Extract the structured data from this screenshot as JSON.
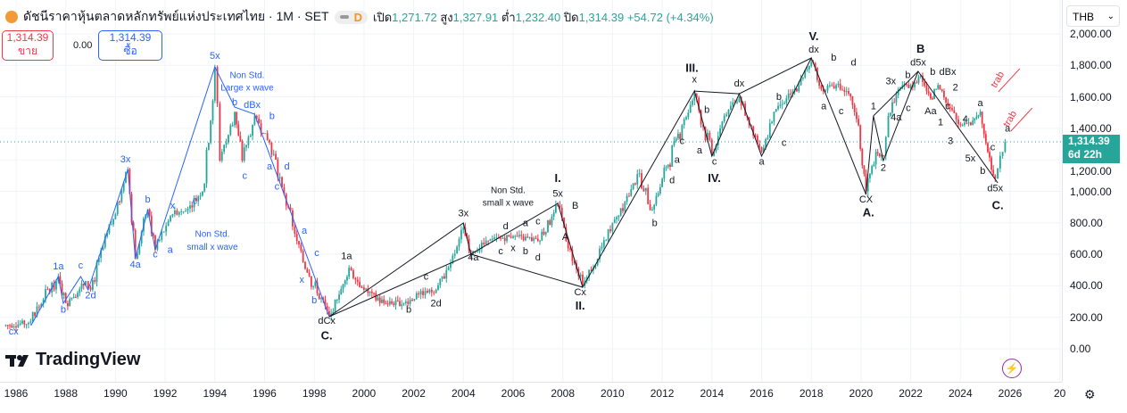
{
  "header": {
    "title": "ดัชนีราคาหุ้นตลาดหลักทรัพย์แห่งประเทศไทย · 1M · SET",
    "badge": "D",
    "open_label": "เปิด",
    "open": "1,271.72",
    "high_label": "สูง",
    "high": "1,327.91",
    "low_label": "ต่ำ",
    "low": "1,232.40",
    "close_label": "ปิด",
    "close": "1,314.39",
    "change": "+54.72 (+4.34%)"
  },
  "trade": {
    "sell_price": "1,314.39",
    "sell_label": "ขาย",
    "spread": "0.00",
    "buy_price": "1,314.39",
    "buy_label": "ซื้อ"
  },
  "axis": {
    "currency": "THB",
    "last_price": "1,314.39",
    "countdown": "6d 22h",
    "ticks": [
      "2,000.00",
      "1,800.00",
      "1,600.00",
      "1,400.00",
      "1,200.00",
      "1,000.00",
      "800.00",
      "600.00",
      "400.00",
      "200.00",
      "0.00"
    ]
  },
  "time_labels": [
    "1986",
    "1988",
    "1990",
    "1992",
    "1994",
    "1996",
    "1998",
    "2000",
    "2002",
    "2004",
    "2006",
    "2008",
    "2010",
    "2012",
    "2014",
    "2016",
    "2018",
    "2020",
    "2022",
    "2024",
    "2026",
    "20"
  ],
  "branding": "TradingView",
  "colors": {
    "up": "#26a69a",
    "down": "#f23645",
    "blue_wave": "#2962ff",
    "black_wave": "#131722",
    "annotation_red": "#f23645",
    "last_line": "#26a69a"
  },
  "chart_data": {
    "type": "candlestick",
    "ylim": [
      0,
      2000
    ],
    "xlim": [
      1985.4,
      2027.9
    ],
    "grid": true,
    "y_scale": "linear",
    "price_path": [
      [
        1985.5,
        147
      ],
      [
        1986.5,
        165
      ],
      [
        1987.7,
        460
      ],
      [
        1988,
        290
      ],
      [
        1988.8,
        430
      ],
      [
        1989,
        375
      ],
      [
        1990,
        855
      ],
      [
        1990.5,
        1140
      ],
      [
        1990.8,
        570
      ],
      [
        1991.3,
        885
      ],
      [
        1991.6,
        630
      ],
      [
        1992.3,
        855
      ],
      [
        1993,
        910
      ],
      [
        1993.5,
        1000
      ],
      [
        1994,
        1790
      ],
      [
        1994.2,
        1195
      ],
      [
        1994.8,
        1505
      ],
      [
        1995.1,
        1195
      ],
      [
        1995.6,
        1480
      ],
      [
        1996.2,
        1310
      ],
      [
        1996.7,
        1025
      ],
      [
        1997.3,
        685
      ],
      [
        1997.8,
        460
      ],
      [
        1998.6,
        205
      ],
      [
        1999,
        345
      ],
      [
        1999.4,
        515
      ],
      [
        2000,
        375
      ],
      [
        2000.8,
        290
      ],
      [
        2001.6,
        290
      ],
      [
        2002.2,
        345
      ],
      [
        2002.9,
        375
      ],
      [
        2003.4,
        515
      ],
      [
        2004,
        770
      ],
      [
        2004.3,
        600
      ],
      [
        2005,
        685
      ],
      [
        2006,
        715
      ],
      [
        2007,
        685
      ],
      [
        2007.8,
        910
      ],
      [
        2008.3,
        630
      ],
      [
        2008.8,
        400
      ],
      [
        2009.4,
        570
      ],
      [
        2010,
        800
      ],
      [
        2011,
        1110
      ],
      [
        2011.6,
        885
      ],
      [
        2012,
        1080
      ],
      [
        2012.8,
        1420
      ],
      [
        2013.3,
        1620
      ],
      [
        2014,
        1225
      ],
      [
        2014.5,
        1480
      ],
      [
        2015.1,
        1600
      ],
      [
        2015.5,
        1420
      ],
      [
        2016,
        1250
      ],
      [
        2016.5,
        1505
      ],
      [
        2017,
        1590
      ],
      [
        2017.5,
        1675
      ],
      [
        2018,
        1820
      ],
      [
        2018.4,
        1650
      ],
      [
        2019,
        1675
      ],
      [
        2019.5,
        1620
      ],
      [
        2019.9,
        1420
      ],
      [
        2020.2,
        1000
      ],
      [
        2020.6,
        1250
      ],
      [
        2020.9,
        1225
      ],
      [
        2021.1,
        1480
      ],
      [
        2021.5,
        1650
      ],
      [
        2022,
        1675
      ],
      [
        2022.4,
        1735
      ],
      [
        2022.8,
        1590
      ],
      [
        2023.1,
        1675
      ],
      [
        2023.5,
        1535
      ],
      [
        2024,
        1420
      ],
      [
        2024.5,
        1450
      ],
      [
        2024.8,
        1505
      ],
      [
        2025.1,
        1250
      ],
      [
        2025.4,
        1080
      ],
      [
        2025.6,
        1225
      ],
      [
        2025.8,
        1314.39
      ]
    ],
    "last_close": 1314.39,
    "wave_lines": [
      {
        "color": "blue",
        "points": [
          [
            1986.6,
            147
          ],
          [
            1987.7,
            459
          ],
          [
            1987.9,
            289
          ],
          [
            1988.6,
            459
          ],
          [
            1988.9,
            374
          ],
          [
            1990.5,
            1139
          ],
          [
            1990.8,
            572
          ],
          [
            1991.3,
            884
          ],
          [
            1991.6,
            629
          ],
          [
            1994,
            1790
          ],
          [
            1994.8,
            1535
          ],
          [
            1995.6,
            1490
          ],
          [
            1998.6,
            204
          ]
        ]
      },
      {
        "color": "black",
        "points": [
          [
            1998.6,
            204
          ],
          [
            2004,
            799
          ],
          [
            2004.3,
            601
          ],
          [
            2007.8,
            923
          ],
          [
            2008.8,
            391
          ],
          [
            2013.3,
            1637
          ],
          [
            2014,
            1224
          ],
          [
            2015.1,
            1620
          ],
          [
            2016,
            1224
          ],
          [
            2018,
            1847
          ],
          [
            2020.2,
            980
          ],
          [
            2020.5,
            1479
          ],
          [
            2020.9,
            1195
          ],
          [
            2022.3,
            1762
          ],
          [
            2025.5,
            1054
          ]
        ]
      },
      {
        "color": "black",
        "points": [
          [
            1998.6,
            204
          ],
          [
            2004.3,
            601
          ],
          [
            2008.8,
            391
          ]
        ]
      },
      {
        "color": "black",
        "points": [
          [
            2013.3,
            1637
          ],
          [
            2015.1,
            1620
          ],
          [
            2018,
            1847
          ]
        ]
      },
      {
        "color": "black",
        "points": [
          [
            2020.5,
            1479
          ],
          [
            2022.3,
            1762
          ]
        ]
      }
    ],
    "labels": [
      {
        "t": "cx",
        "x": 1985.9,
        "y": 90,
        "c": "blue"
      },
      {
        "t": "1a",
        "x": 1987.7,
        "y": 505,
        "c": "blue"
      },
      {
        "t": "b",
        "x": 1987.9,
        "y": 230,
        "c": "blue"
      },
      {
        "t": "c",
        "x": 1988.6,
        "y": 510,
        "c": "blue"
      },
      {
        "t": "2d",
        "x": 1989,
        "y": 320,
        "c": "blue"
      },
      {
        "t": "3x",
        "x": 1990.4,
        "y": 1185,
        "c": "blue"
      },
      {
        "t": "4a",
        "x": 1990.8,
        "y": 515,
        "c": "blue"
      },
      {
        "t": "b",
        "x": 1991.3,
        "y": 930,
        "c": "blue"
      },
      {
        "t": "c",
        "x": 1991.6,
        "y": 580,
        "c": "blue"
      },
      {
        "t": "x",
        "x": 1992.3,
        "y": 890,
        "c": "blue"
      },
      {
        "t": "a",
        "x": 1992.2,
        "y": 610,
        "c": "blue"
      },
      {
        "t": "c",
        "x": 1993.2,
        "y": 920,
        "c": "blue"
      },
      {
        "t": "Non Std.",
        "x": 1993.9,
        "y": 710,
        "c": "blue"
      },
      {
        "t": "small x wave",
        "x": 1993.9,
        "y": 630,
        "c": "blue"
      },
      {
        "t": "5x",
        "x": 1994,
        "y": 1840,
        "c": "blue"
      },
      {
        "t": "Non Std.",
        "x": 1995.3,
        "y": 1720,
        "c": "blue"
      },
      {
        "t": "Large x wave",
        "x": 1995.3,
        "y": 1640,
        "c": "blue"
      },
      {
        "t": "b",
        "x": 1994.8,
        "y": 1580,
        "c": "blue"
      },
      {
        "t": "dBx",
        "x": 1995.5,
        "y": 1530,
        "c": "blue"
      },
      {
        "t": "b",
        "x": 1996.3,
        "y": 1460,
        "c": "blue"
      },
      {
        "t": "c",
        "x": 1995.2,
        "y": 1080,
        "c": "blue"
      },
      {
        "t": "a",
        "x": 1996.2,
        "y": 1140,
        "c": "blue"
      },
      {
        "t": "d",
        "x": 1996.9,
        "y": 1140,
        "c": "blue"
      },
      {
        "t": "c",
        "x": 1996.5,
        "y": 1010,
        "c": "blue"
      },
      {
        "t": "a",
        "x": 1997.6,
        "y": 730,
        "c": "blue"
      },
      {
        "t": "c",
        "x": 1998.1,
        "y": 590,
        "c": "blue"
      },
      {
        "t": "x",
        "x": 1997.5,
        "y": 420,
        "c": "blue"
      },
      {
        "t": "b",
        "x": 1998,
        "y": 290,
        "c": "blue"
      },
      {
        "t": "dCx",
        "x": 1998.5,
        "y": 160,
        "c": "black"
      },
      {
        "t": "C.",
        "x": 1998.5,
        "y": 60,
        "c": "black",
        "b": true
      },
      {
        "t": "1a",
        "x": 1999.3,
        "y": 570,
        "c": "black"
      },
      {
        "t": "b",
        "x": 2001.8,
        "y": 230,
        "c": "black"
      },
      {
        "t": "2d",
        "x": 2002.9,
        "y": 270,
        "c": "black"
      },
      {
        "t": "c",
        "x": 2002.5,
        "y": 440,
        "c": "black"
      },
      {
        "t": "3x",
        "x": 2004,
        "y": 840,
        "c": "black"
      },
      {
        "t": "4a",
        "x": 2004.4,
        "y": 560,
        "c": "black"
      },
      {
        "t": "Non Std.",
        "x": 2005.8,
        "y": 990,
        "c": "black"
      },
      {
        "t": "small x wave",
        "x": 2005.8,
        "y": 910,
        "c": "black"
      },
      {
        "t": "c",
        "x": 2005.5,
        "y": 600,
        "c": "black"
      },
      {
        "t": "x",
        "x": 2006,
        "y": 620,
        "c": "black"
      },
      {
        "t": "b",
        "x": 2006.5,
        "y": 600,
        "c": "black"
      },
      {
        "t": "d",
        "x": 2007,
        "y": 560,
        "c": "black"
      },
      {
        "t": "d",
        "x": 2005.7,
        "y": 760,
        "c": "black"
      },
      {
        "t": "a",
        "x": 2006.5,
        "y": 780,
        "c": "black"
      },
      {
        "t": "c",
        "x": 2007,
        "y": 790,
        "c": "black"
      },
      {
        "t": "I.",
        "x": 2007.8,
        "y": 1060,
        "c": "black",
        "b": true
      },
      {
        "t": "5x",
        "x": 2007.8,
        "y": 965,
        "c": "black"
      },
      {
        "t": "B",
        "x": 2008.5,
        "y": 890,
        "c": "black"
      },
      {
        "t": "A",
        "x": 2008.1,
        "y": 690,
        "c": "black"
      },
      {
        "t": "Cx",
        "x": 2008.7,
        "y": 340,
        "c": "black"
      },
      {
        "t": "II.",
        "x": 2008.7,
        "y": 250,
        "c": "black",
        "b": true
      },
      {
        "t": "b",
        "x": 2011.7,
        "y": 780,
        "c": "black"
      },
      {
        "t": "d",
        "x": 2012.4,
        "y": 1050,
        "c": "black"
      },
      {
        "t": "a",
        "x": 2012.6,
        "y": 1180,
        "c": "black"
      },
      {
        "t": "c",
        "x": 2012.8,
        "y": 1300,
        "c": "black"
      },
      {
        "t": "III.",
        "x": 2013.2,
        "y": 1760,
        "c": "black",
        "b": true
      },
      {
        "t": "x",
        "x": 2013.3,
        "y": 1690,
        "c": "black"
      },
      {
        "t": "b",
        "x": 2013.8,
        "y": 1500,
        "c": "black"
      },
      {
        "t": "a",
        "x": 2013.5,
        "y": 1240,
        "c": "black"
      },
      {
        "t": "c",
        "x": 2014.1,
        "y": 1170,
        "c": "black"
      },
      {
        "t": "IV.",
        "x": 2014.1,
        "y": 1060,
        "c": "black",
        "b": true
      },
      {
        "t": "dx",
        "x": 2015.1,
        "y": 1665,
        "c": "black"
      },
      {
        "t": "a",
        "x": 2016,
        "y": 1170,
        "c": "black"
      },
      {
        "t": "c",
        "x": 2016.9,
        "y": 1290,
        "c": "black"
      },
      {
        "t": "b",
        "x": 2016.7,
        "y": 1580,
        "c": "black"
      },
      {
        "t": "V.",
        "x": 2018.1,
        "y": 1960,
        "c": "black",
        "b": true
      },
      {
        "t": "dx",
        "x": 2018.1,
        "y": 1880,
        "c": "black"
      },
      {
        "t": "b",
        "x": 2018.9,
        "y": 1830,
        "c": "black"
      },
      {
        "t": "d",
        "x": 2019.7,
        "y": 1800,
        "c": "black"
      },
      {
        "t": "a",
        "x": 2018.5,
        "y": 1520,
        "c": "black"
      },
      {
        "t": "c",
        "x": 2019.2,
        "y": 1490,
        "c": "black"
      },
      {
        "t": "CX",
        "x": 2020.2,
        "y": 930,
        "c": "black"
      },
      {
        "t": "A.",
        "x": 2020.3,
        "y": 840,
        "c": "black",
        "b": true
      },
      {
        "t": "1",
        "x": 2020.5,
        "y": 1520,
        "c": "black"
      },
      {
        "t": "2",
        "x": 2020.9,
        "y": 1130,
        "c": "black"
      },
      {
        "t": "3x",
        "x": 2021.2,
        "y": 1680,
        "c": "black"
      },
      {
        "t": "b",
        "x": 2021.6,
        "y": 1720,
        "c": "black"
      },
      {
        "t": "c",
        "x": 2021.9,
        "y": 1510,
        "c": "black"
      },
      {
        "t": "4a",
        "x": 2021.7,
        "y": 1450,
        "c": "black"
      },
      {
        "t": "B",
        "x": 2022.4,
        "y": 1880,
        "c": "black",
        "b": true
      },
      {
        "t": "d5x",
        "x": 2022.3,
        "y": 1800,
        "c": "black"
      },
      {
        "t": "b",
        "x": 2022.6,
        "y": 1740,
        "c": "black"
      },
      {
        "t": "dBx",
        "x": 2023.2,
        "y": 1740,
        "c": "black"
      },
      {
        "t": "Aa",
        "x": 2022.8,
        "y": 1490,
        "c": "black"
      },
      {
        "t": "c",
        "x": 2023.2,
        "y": 1520,
        "c": "black"
      },
      {
        "t": "2",
        "x": 2023.8,
        "y": 1640,
        "c": "black"
      },
      {
        "t": "1",
        "x": 2023.2,
        "y": 1420,
        "c": "black"
      },
      {
        "t": "4",
        "x": 2024.2,
        "y": 1440,
        "c": "black"
      },
      {
        "t": "3",
        "x": 2023.6,
        "y": 1300,
        "c": "black"
      },
      {
        "t": "a",
        "x": 2024.8,
        "y": 1540,
        "c": "black"
      },
      {
        "t": "5x",
        "x": 2024.4,
        "y": 1190,
        "c": "black"
      },
      {
        "t": "c",
        "x": 2025.3,
        "y": 1260,
        "c": "black"
      },
      {
        "t": "b",
        "x": 2024.9,
        "y": 1110,
        "c": "black"
      },
      {
        "t": "a",
        "x": 2025.9,
        "y": 1380,
        "c": "black"
      },
      {
        "t": "d5x",
        "x": 2025.4,
        "y": 1000,
        "c": "black"
      },
      {
        "t": "C.",
        "x": 2025.5,
        "y": 920,
        "c": "black",
        "b": true
      },
      {
        "t": "trab",
        "x": 2025.6,
        "y": 1700,
        "c": "red",
        "rot": true
      },
      {
        "t": "trab",
        "x": 2026.1,
        "y": 1450,
        "c": "red",
        "rot": true
      }
    ]
  }
}
